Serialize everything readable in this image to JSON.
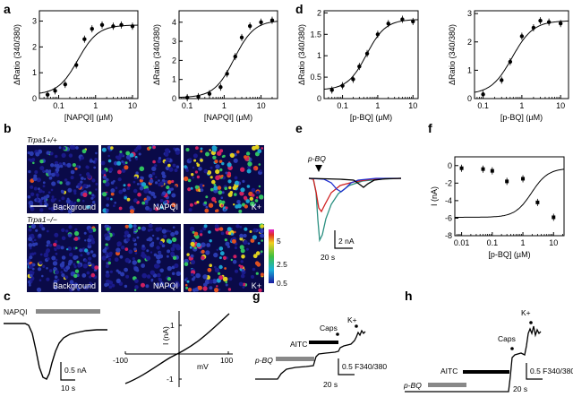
{
  "panels": {
    "a": "a",
    "b": "b",
    "c": "c",
    "d": "d",
    "e": "e",
    "f": "f",
    "g": "g",
    "h": "h"
  },
  "axis_labels": {
    "ratio": "ΔRatio (340/380)",
    "napqi_conc": "[NAPQI] (µM)",
    "pbq_conc": "[p-BQ] (µM)",
    "current_na": "I (nA)",
    "mv": "mV"
  },
  "microscopy": {
    "genotype_wt": "Trpa1+/+",
    "genotype_ko": "Trpa1−/−",
    "labels": [
      "Background",
      "NAPQI",
      "K+"
    ],
    "colorbar_ticks": [
      "5",
      "2.5",
      "0.5"
    ]
  },
  "traces": {
    "napqi": "NAPQI",
    "pbq": "p-BQ",
    "aitc": "AITC",
    "caps": "Caps",
    "k": "K+",
    "scale_c": "0.5 nA",
    "scale_c_t": "10 s",
    "scale_e_i": "2 nA",
    "scale_e_t": "20 s",
    "scale_ratio": "0.5 F340/380",
    "scale_gh_t": "20 s"
  },
  "chart_data": [
    {
      "id": "a-left",
      "type": "scatter",
      "xlabel": "[NAPQI] (µM)",
      "ylabel": "ΔRatio (340/380)",
      "xscale": "log",
      "xlim": [
        0.03,
        14
      ],
      "ylim": [
        0,
        3.4
      ],
      "xticks": [
        "0.1",
        "1",
        "10"
      ],
      "yticks": [
        "0",
        "1",
        "2",
        "3"
      ],
      "x": [
        0.05,
        0.08,
        0.15,
        0.3,
        0.5,
        0.8,
        1.5,
        3,
        5,
        10
      ],
      "y": [
        0.15,
        0.3,
        0.55,
        1.3,
        2.3,
        2.7,
        2.85,
        2.8,
        2.85,
        2.8
      ]
    },
    {
      "id": "a-right",
      "type": "scatter",
      "xlabel": "[NAPQI] (µM)",
      "ylabel": "ΔRatio (340/380)",
      "xscale": "log",
      "xlim": [
        0.06,
        28
      ],
      "ylim": [
        0,
        4.6
      ],
      "xticks": [
        "0.1",
        "1",
        "10"
      ],
      "yticks": [
        "0",
        "1",
        "2",
        "3",
        "4"
      ],
      "x": [
        0.1,
        0.2,
        0.4,
        0.8,
        1.2,
        2,
        3,
        5,
        10,
        20
      ],
      "y": [
        0.05,
        0.1,
        0.25,
        0.6,
        1.3,
        2.2,
        3.2,
        3.8,
        4.0,
        4.1
      ]
    },
    {
      "id": "d-left",
      "type": "scatter",
      "xlabel": "[p-BQ] (µM)",
      "ylabel": "ΔRatio (340/380)",
      "xscale": "log",
      "xlim": [
        0.03,
        14
      ],
      "ylim": [
        0,
        2.05
      ],
      "xticks": [
        "0.1",
        "1",
        "10"
      ],
      "yticks": [
        "0",
        "0.5",
        "1",
        "1.5",
        "2"
      ],
      "x": [
        0.05,
        0.1,
        0.2,
        0.3,
        0.5,
        1,
        2,
        5,
        10
      ],
      "y": [
        0.2,
        0.3,
        0.45,
        0.75,
        1.05,
        1.5,
        1.75,
        1.85,
        1.8
      ]
    },
    {
      "id": "d-right",
      "type": "scatter",
      "xlabel": "[p-BQ] (µM)",
      "ylabel": "ΔRatio (340/380)",
      "xscale": "log",
      "xlim": [
        0.06,
        16
      ],
      "ylim": [
        0,
        3.1
      ],
      "xticks": [
        "0.1",
        "1",
        "10"
      ],
      "yticks": [
        "0",
        "1",
        "2",
        "3"
      ],
      "x": [
        0.1,
        0.3,
        0.5,
        1,
        2,
        3,
        5,
        10
      ],
      "y": [
        0.15,
        0.65,
        1.3,
        2.2,
        2.5,
        2.75,
        2.7,
        2.65
      ]
    },
    {
      "id": "f",
      "type": "scatter",
      "xlabel": "[p-BQ] (µM)",
      "ylabel": "I (nA)",
      "xscale": "log",
      "xlim": [
        0.006,
        22
      ],
      "ylim": [
        -8,
        1
      ],
      "xticks": [
        "0.01",
        "0.1",
        "1",
        "10"
      ],
      "yticks": [
        "0",
        "-2",
        "-4",
        "-6",
        "-8"
      ],
      "x": [
        0.01,
        0.05,
        0.1,
        0.3,
        1,
        3,
        10
      ],
      "y": [
        -0.3,
        -0.4,
        -0.6,
        -1.8,
        -1.5,
        -4.2,
        -5.9
      ]
    },
    {
      "id": "c-iv",
      "type": "line",
      "xlabel": "mV",
      "ylabel": "I (nA)",
      "xlim": [
        -100,
        100
      ],
      "ylim": [
        -1.2,
        1.2
      ],
      "xticks": [
        "-100",
        "100"
      ],
      "yticks": [
        "1",
        "-1"
      ]
    }
  ]
}
